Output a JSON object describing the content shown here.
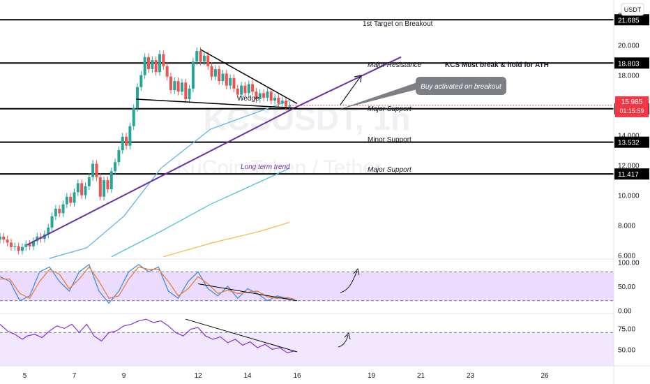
{
  "currency_badge": "USDT",
  "watermark": {
    "line1": "KCSUSDT, 1h",
    "line2": "KuCoin Token / Tether"
  },
  "price_badge": {
    "price": "15.985",
    "countdown": "01:15:59",
    "color": "#f23645"
  },
  "colors": {
    "up": "#26a69a",
    "down": "#ef5350",
    "trend": "#6b2fa8",
    "ma_fast": "#4fb3e8",
    "ma_mid": "#3fbfd8",
    "ma_slow": "#f5b942",
    "stoch_k": "#3d8fe0",
    "stoch_d": "#f07a32",
    "rsi": "#8a2be2",
    "band_fill": "#e3ccff",
    "band_fill2": "#f0e6ff"
  },
  "annotations": {
    "target": "1st Target on Breakout",
    "resistance": "Major Resistance",
    "must_break": "KCS Must break & hold for ATH",
    "buy_callout": "Buy activated on breakout",
    "major_support_1": "Major Support",
    "minor_support": "Minor Support",
    "major_support_2": "Major Support",
    "wedge": "Wedge",
    "long_term_trend": "Long term trend"
  },
  "chart_data": [
    {
      "type": "candlestick",
      "title": "KCSUSDT, 1h",
      "y_axis": {
        "ticks": [
          6,
          8,
          10,
          12,
          14,
          16,
          18,
          20,
          22
        ],
        "tick_labels": [
          "6.000",
          "8.000",
          "10.000",
          "12.000",
          "14.000",
          "16.000",
          "18.000",
          "20.000",
          "22.000"
        ],
        "range": [
          5.8,
          23.0
        ]
      },
      "x_axis": {
        "days": [
          4,
          26
        ],
        "tick_labels": [
          {
            "day": 5,
            "label": "5"
          },
          {
            "day": 7,
            "label": "7"
          },
          {
            "day": 9,
            "label": "9"
          },
          {
            "day": 12,
            "label": "12"
          },
          {
            "day": 14,
            "label": "14"
          },
          {
            "day": 16,
            "label": "16"
          },
          {
            "day": 19,
            "label": "19"
          },
          {
            "day": 21,
            "label": "21"
          },
          {
            "day": 23,
            "label": "23"
          },
          {
            "day": 26,
            "label": "26"
          }
        ]
      },
      "levels": [
        {
          "price": 21.685,
          "label": "21.685"
        },
        {
          "price": 18.803,
          "label": "18.803"
        },
        {
          "price": 15.757,
          "label": "15.757"
        },
        {
          "price": 13.532,
          "label": "13.532"
        },
        {
          "price": 11.417,
          "label": "11.417"
        }
      ],
      "candles": [
        [
          4.0,
          7.05,
          7.25
        ],
        [
          4.15,
          7.25,
          7.05
        ],
        [
          4.3,
          7.05,
          6.85
        ],
        [
          4.45,
          6.85,
          6.55
        ],
        [
          4.6,
          6.55,
          6.6
        ],
        [
          4.75,
          6.6,
          6.3
        ],
        [
          4.9,
          6.3,
          6.55
        ],
        [
          5.05,
          6.55,
          6.75
        ],
        [
          5.2,
          6.75,
          6.6
        ],
        [
          5.35,
          6.6,
          6.95
        ],
        [
          5.5,
          6.95,
          7.25
        ],
        [
          5.65,
          7.25,
          7.1
        ],
        [
          5.8,
          7.1,
          7.4
        ],
        [
          5.95,
          7.4,
          7.85
        ],
        [
          6.1,
          7.85,
          8.6
        ],
        [
          6.25,
          8.6,
          9.1
        ],
        [
          6.4,
          9.1,
          8.8
        ],
        [
          6.55,
          8.8,
          9.4
        ],
        [
          6.7,
          9.4,
          9.9
        ],
        [
          6.85,
          9.9,
          9.5
        ],
        [
          7.0,
          9.5,
          10.2
        ],
        [
          7.15,
          10.2,
          10.8
        ],
        [
          7.3,
          10.8,
          10.0
        ],
        [
          7.45,
          10.0,
          10.6
        ],
        [
          7.6,
          10.6,
          11.2
        ],
        [
          7.75,
          11.2,
          12.1
        ],
        [
          7.9,
          12.1,
          11.2
        ],
        [
          8.05,
          11.2,
          9.9
        ],
        [
          8.2,
          9.9,
          11.0
        ],
        [
          8.35,
          11.0,
          10.4
        ],
        [
          8.5,
          10.4,
          11.6
        ],
        [
          8.65,
          11.6,
          12.2
        ],
        [
          8.8,
          12.2,
          13.0
        ],
        [
          8.95,
          13.0,
          13.9
        ],
        [
          9.1,
          13.9,
          13.3
        ],
        [
          9.25,
          13.3,
          14.6
        ],
        [
          9.4,
          14.6,
          15.8
        ],
        [
          9.55,
          15.8,
          17.2
        ],
        [
          9.7,
          17.2,
          18.0
        ],
        [
          9.85,
          18.0,
          19.2
        ],
        [
          10.0,
          19.2,
          18.4
        ],
        [
          10.15,
          18.4,
          19.0
        ],
        [
          10.3,
          19.0,
          18.2
        ],
        [
          10.45,
          18.2,
          19.4
        ],
        [
          10.6,
          19.4,
          18.6
        ],
        [
          10.75,
          18.6,
          17.9
        ],
        [
          10.9,
          17.9,
          17.0
        ],
        [
          11.05,
          17.0,
          17.6
        ],
        [
          11.2,
          17.6,
          16.9
        ],
        [
          11.35,
          16.9,
          17.5
        ],
        [
          11.5,
          17.5,
          16.4
        ],
        [
          11.65,
          16.4,
          17.1
        ],
        [
          11.8,
          17.1,
          18.9
        ],
        [
          11.95,
          18.9,
          19.6
        ],
        [
          12.1,
          19.6,
          18.9
        ],
        [
          12.25,
          18.9,
          19.3
        ],
        [
          12.4,
          19.3,
          18.6
        ],
        [
          12.55,
          18.6,
          17.9
        ],
        [
          12.7,
          17.9,
          18.4
        ],
        [
          12.85,
          18.4,
          17.6
        ],
        [
          13.0,
          17.6,
          18.1
        ],
        [
          13.15,
          18.1,
          17.3
        ],
        [
          13.3,
          17.3,
          17.8
        ],
        [
          13.45,
          17.8,
          17.1
        ],
        [
          13.6,
          17.1,
          16.7
        ],
        [
          13.75,
          16.7,
          17.3
        ],
        [
          13.9,
          17.3,
          16.8
        ],
        [
          14.05,
          16.8,
          17.4
        ],
        [
          14.2,
          17.4,
          16.9
        ],
        [
          14.35,
          16.9,
          16.4
        ],
        [
          14.5,
          16.4,
          16.8
        ],
        [
          14.65,
          16.8,
          16.5
        ],
        [
          14.8,
          16.5,
          16.9
        ],
        [
          14.95,
          16.9,
          16.3
        ],
        [
          15.1,
          16.3,
          16.5
        ],
        [
          15.25,
          16.5,
          16.1
        ],
        [
          15.4,
          16.1,
          16.3
        ],
        [
          15.55,
          16.3,
          15.9
        ],
        [
          15.7,
          15.9,
          15.98
        ]
      ],
      "trendlines": [
        {
          "name": "long-term-trend",
          "points": [
            [
              5.1,
              6.7
            ],
            [
              16.0,
              15.9
            ],
            [
              20.2,
              19.2
            ]
          ]
        },
        {
          "name": "wedge-top",
          "points": [
            [
              12.1,
              19.7
            ],
            [
              16.0,
              16.1
            ]
          ]
        },
        {
          "name": "wedge-bottom",
          "points": [
            [
              9.5,
              16.4
            ],
            [
              16.0,
              15.8
            ]
          ]
        }
      ],
      "moving_averages": [
        {
          "key": "ma_fast",
          "points": [
            [
              6.0,
              5.8
            ],
            [
              7.5,
              6.5
            ],
            [
              9.0,
              8.6
            ],
            [
              10.5,
              11.8
            ],
            [
              12.5,
              14.4
            ],
            [
              14.5,
              15.6
            ],
            [
              15.7,
              16.3
            ]
          ]
        },
        {
          "key": "ma_mid",
          "points": [
            [
              8.5,
              5.9
            ],
            [
              10.5,
              7.6
            ],
            [
              12.5,
              9.4
            ],
            [
              14.5,
              10.9
            ],
            [
              15.7,
              11.8
            ]
          ]
        },
        {
          "key": "ma_slow",
          "points": [
            [
              10.6,
              5.9
            ],
            [
              12.5,
              6.8
            ],
            [
              14.5,
              7.6
            ],
            [
              15.7,
              8.2
            ]
          ]
        }
      ]
    },
    {
      "type": "line",
      "title": "Stochastic RSI",
      "y_axis": {
        "ticks": [
          0,
          50,
          100
        ],
        "tick_labels": [
          "0.00",
          "50.00",
          "100.00"
        ],
        "range": [
          -5,
          105
        ]
      },
      "band": [
        20,
        80
      ],
      "series": [
        {
          "key": "stoch_k",
          "points": [
            [
              4.0,
              70
            ],
            [
              4.4,
              60
            ],
            [
              4.8,
              20
            ],
            [
              5.2,
              30
            ],
            [
              5.6,
              80
            ],
            [
              6.0,
              90
            ],
            [
              6.4,
              60
            ],
            [
              6.8,
              40
            ],
            [
              7.2,
              80
            ],
            [
              7.6,
              95
            ],
            [
              8.0,
              40
            ],
            [
              8.4,
              15
            ],
            [
              8.8,
              40
            ],
            [
              9.2,
              80
            ],
            [
              9.6,
              95
            ],
            [
              10.0,
              80
            ],
            [
              10.4,
              90
            ],
            [
              10.8,
              40
            ],
            [
              11.2,
              25
            ],
            [
              11.6,
              60
            ],
            [
              12.0,
              80
            ],
            [
              12.4,
              45
            ],
            [
              12.8,
              30
            ],
            [
              13.2,
              50
            ],
            [
              13.6,
              25
            ],
            [
              14.0,
              45
            ],
            [
              14.4,
              35
            ],
            [
              14.8,
              20
            ],
            [
              15.2,
              30
            ],
            [
              15.6,
              25
            ],
            [
              15.9,
              20
            ]
          ]
        },
        {
          "key": "stoch_d",
          "points": [
            [
              4.0,
              65
            ],
            [
              4.4,
              65
            ],
            [
              4.8,
              35
            ],
            [
              5.2,
              25
            ],
            [
              5.6,
              60
            ],
            [
              6.0,
              85
            ],
            [
              6.4,
              75
            ],
            [
              6.8,
              45
            ],
            [
              7.2,
              65
            ],
            [
              7.6,
              90
            ],
            [
              8.0,
              60
            ],
            [
              8.4,
              25
            ],
            [
              8.8,
              30
            ],
            [
              9.2,
              65
            ],
            [
              9.6,
              90
            ],
            [
              10.0,
              85
            ],
            [
              10.4,
              85
            ],
            [
              10.8,
              60
            ],
            [
              11.2,
              30
            ],
            [
              11.6,
              45
            ],
            [
              12.0,
              70
            ],
            [
              12.4,
              55
            ],
            [
              12.8,
              35
            ],
            [
              13.2,
              42
            ],
            [
              13.6,
              35
            ],
            [
              14.0,
              38
            ],
            [
              14.4,
              40
            ],
            [
              14.8,
              28
            ],
            [
              15.2,
              25
            ],
            [
              15.6,
              27
            ],
            [
              15.9,
              23
            ]
          ]
        }
      ],
      "trendline": [
        [
          12.0,
          55
        ],
        [
          16.0,
          20
        ]
      ]
    },
    {
      "type": "line",
      "title": "RSI",
      "y_axis": {
        "ticks": [
          50,
          75
        ],
        "tick_labels": [
          "50.00",
          "75.00"
        ],
        "range": [
          32,
          92
        ]
      },
      "band": [
        70,
        30
      ],
      "series": [
        {
          "key": "rsi",
          "points": [
            [
              4.0,
              80
            ],
            [
              4.3,
              72
            ],
            [
              4.6,
              68
            ],
            [
              4.9,
              62
            ],
            [
              5.1,
              66
            ],
            [
              5.4,
              68
            ],
            [
              5.7,
              64
            ],
            [
              6.0,
              72
            ],
            [
              6.3,
              78
            ],
            [
              6.6,
              75
            ],
            [
              6.9,
              80
            ],
            [
              7.2,
              70
            ],
            [
              7.5,
              80
            ],
            [
              7.8,
              66
            ],
            [
              8.1,
              60
            ],
            [
              8.4,
              70
            ],
            [
              8.7,
              72
            ],
            [
              9.0,
              78
            ],
            [
              9.3,
              80
            ],
            [
              9.6,
              84
            ],
            [
              9.9,
              86
            ],
            [
              10.2,
              82
            ],
            [
              10.5,
              84
            ],
            [
              10.8,
              78
            ],
            [
              11.1,
              70
            ],
            [
              11.4,
              66
            ],
            [
              11.7,
              74
            ],
            [
              12.0,
              76
            ],
            [
              12.3,
              66
            ],
            [
              12.6,
              62
            ],
            [
              12.9,
              65
            ],
            [
              13.2,
              58
            ],
            [
              13.5,
              62
            ],
            [
              13.8,
              55
            ],
            [
              14.1,
              59
            ],
            [
              14.4,
              52
            ],
            [
              14.7,
              56
            ],
            [
              15.0,
              50
            ],
            [
              15.3,
              52
            ],
            [
              15.6,
              46
            ],
            [
              15.9,
              48
            ]
          ]
        }
      ],
      "trendline": [
        [
          11.5,
          86
        ],
        [
          16.0,
          47
        ]
      ]
    }
  ]
}
